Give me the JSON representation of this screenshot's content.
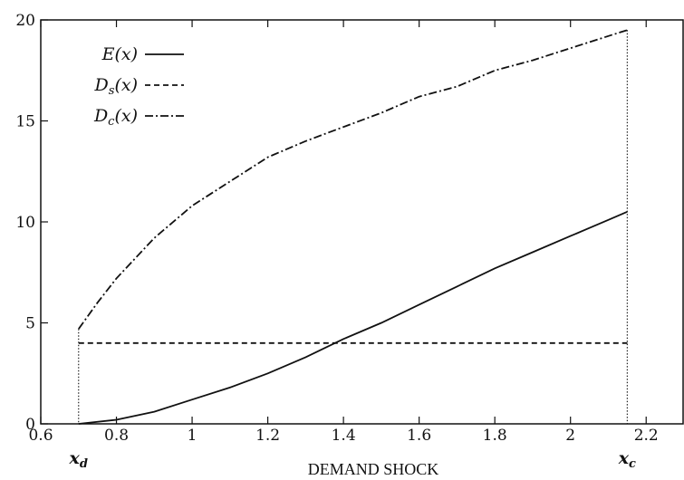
{
  "chart_data": {
    "type": "line",
    "title": "",
    "xlabel": "DEMAND SHOCK",
    "ylabel": "",
    "xlim": [
      0.6,
      2.3
    ],
    "ylim": [
      0,
      20
    ],
    "x_ticks": [
      "0.6",
      "0.8",
      "1",
      "1.2",
      "1.4",
      "1.6",
      "1.8",
      "2",
      "2.2"
    ],
    "y_ticks": [
      "0",
      "5",
      "10",
      "15",
      "20"
    ],
    "grid": false,
    "legend_position": "top-left",
    "series": [
      {
        "name": "E(x)",
        "style": "solid",
        "x": [
          0.7,
          0.8,
          0.9,
          1.0,
          1.1,
          1.2,
          1.3,
          1.4,
          1.5,
          1.6,
          1.7,
          1.8,
          1.9,
          2.0,
          2.1,
          2.15
        ],
        "y": [
          0.0,
          0.2,
          0.6,
          1.2,
          1.8,
          2.5,
          3.3,
          4.2,
          5.0,
          5.9,
          6.8,
          7.7,
          8.5,
          9.3,
          10.1,
          10.5
        ]
      },
      {
        "name": "D_s(x)",
        "style": "dashed",
        "x": [
          0.7,
          2.15
        ],
        "y": [
          4.0,
          4.0
        ]
      },
      {
        "name": "D_c(x)",
        "style": "dashdot",
        "x": [
          0.7,
          0.75,
          0.8,
          0.9,
          1.0,
          1.1,
          1.2,
          1.3,
          1.4,
          1.5,
          1.6,
          1.7,
          1.8,
          1.9,
          2.0,
          2.1,
          2.15
        ],
        "y": [
          4.7,
          6.0,
          7.2,
          9.2,
          10.8,
          12.0,
          13.2,
          14.0,
          14.7,
          15.4,
          16.2,
          16.7,
          17.5,
          18.0,
          18.6,
          19.2,
          19.5
        ]
      }
    ],
    "markers": [
      {
        "label": "x_d",
        "x": 0.7
      },
      {
        "label": "x_c",
        "x": 2.15
      }
    ]
  }
}
